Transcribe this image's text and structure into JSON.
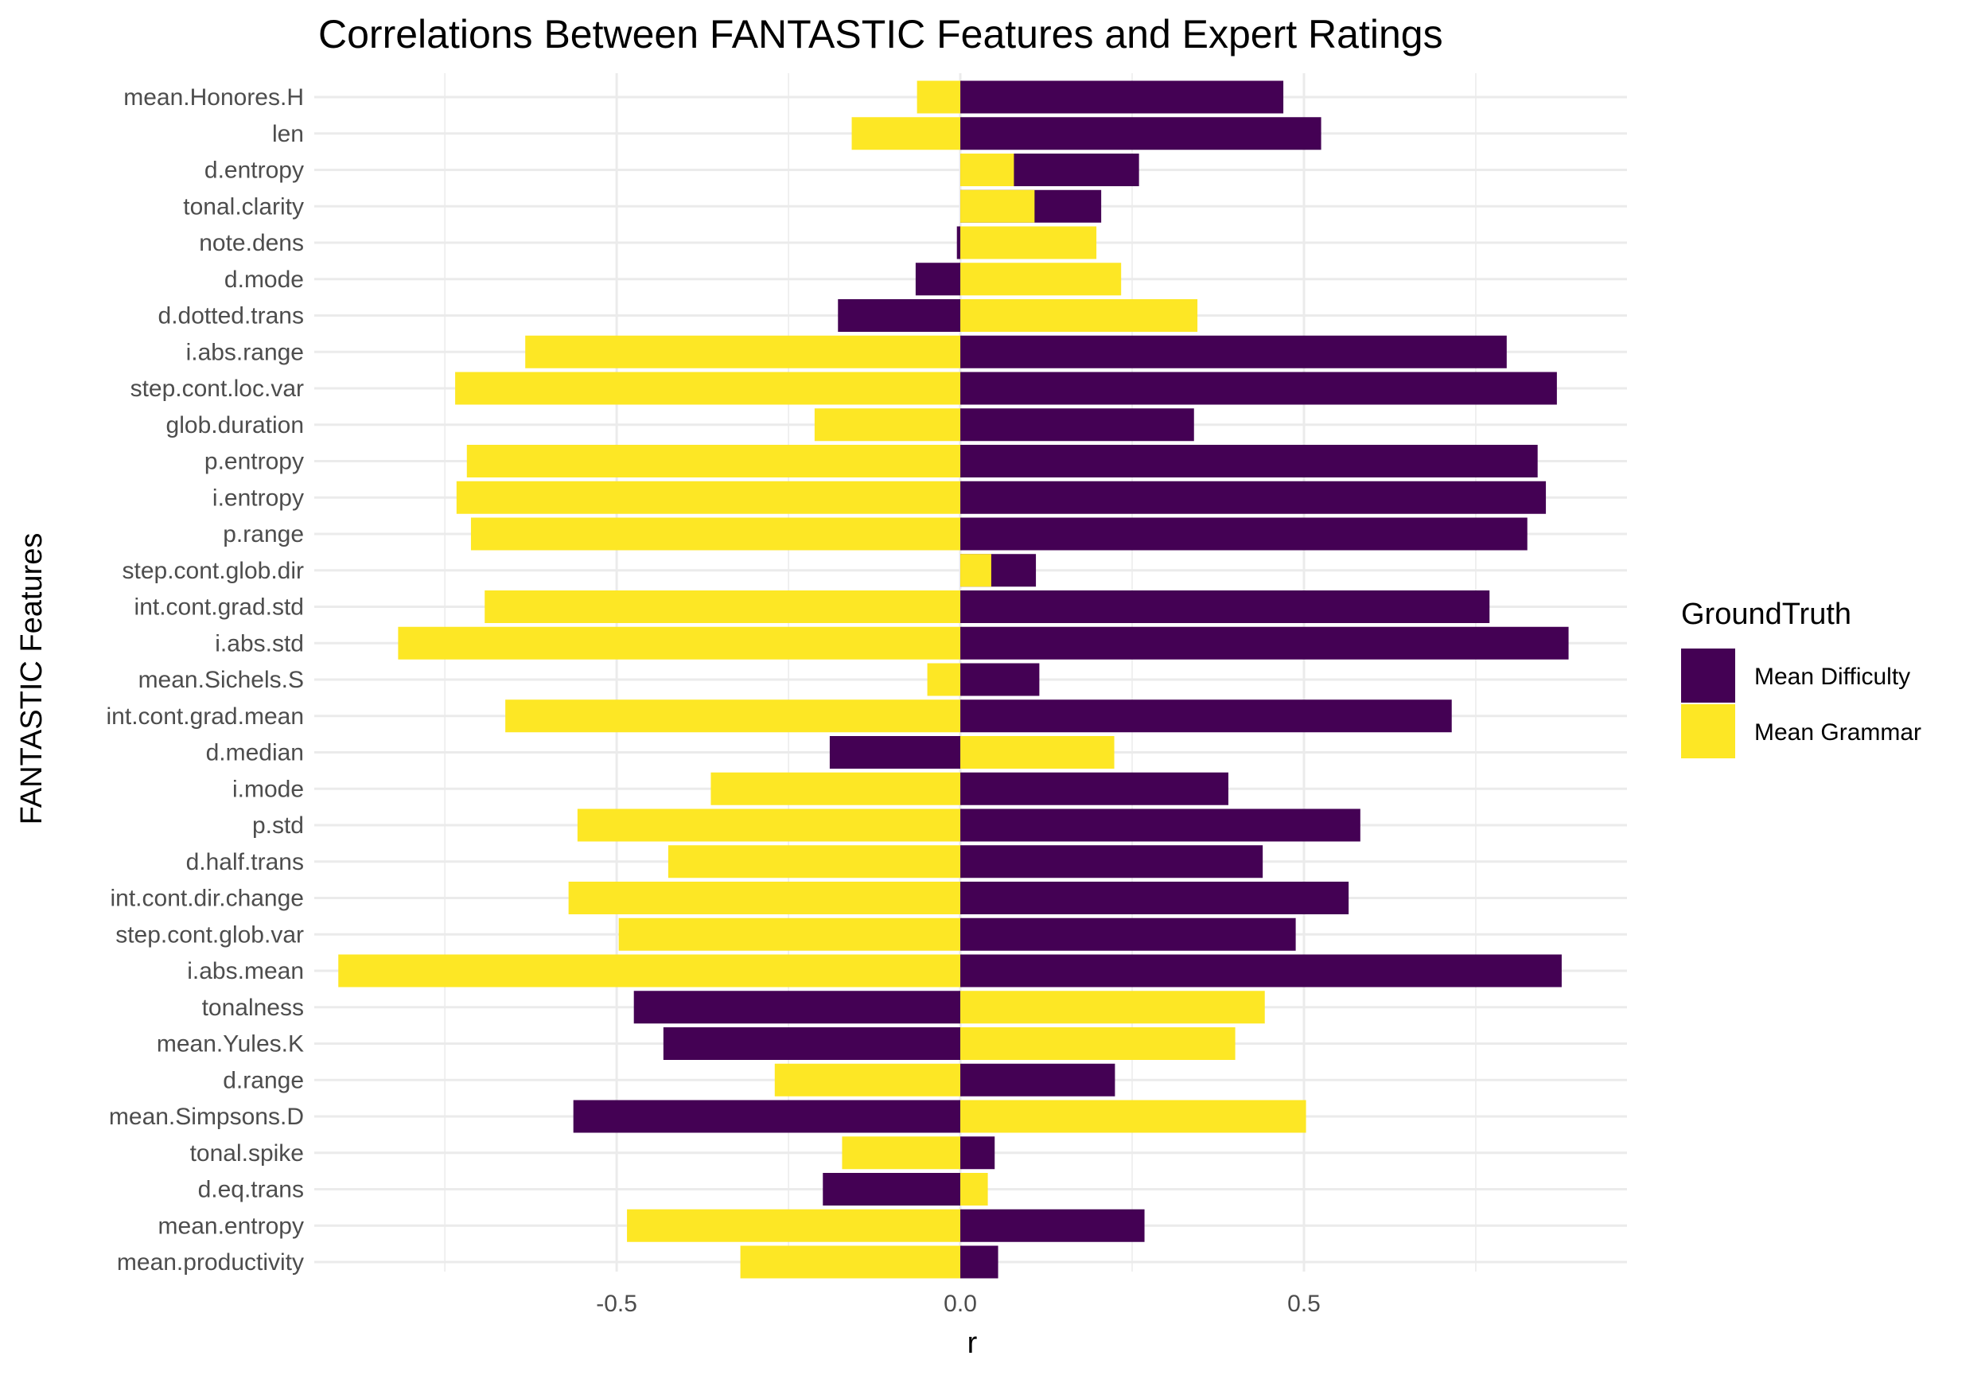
{
  "chart_data": {
    "type": "bar",
    "orientation": "horizontal",
    "title": "Correlations Between FANTASTIC Features and Expert Ratings",
    "xlabel": "r",
    "ylabel": "FANTASTIC Features",
    "xlim": [
      -0.94,
      0.97
    ],
    "x_ticks": [
      -0.5,
      0.0,
      0.5
    ],
    "x_tick_labels": [
      "-0.5",
      "0.0",
      "0.5"
    ],
    "grid": true,
    "legend": {
      "title": "GroundTruth",
      "placement": "right",
      "entries": [
        {
          "label": "Mean Difficulty",
          "color": "#440154"
        },
        {
          "label": "Mean Grammar",
          "color": "#FDE725"
        }
      ]
    },
    "categories": [
      "mean.Honores.H",
      "len",
      "d.entropy",
      "tonal.clarity",
      "note.dens",
      "d.mode",
      "d.dotted.trans",
      "i.abs.range",
      "step.cont.loc.var",
      "glob.duration",
      "p.entropy",
      "i.entropy",
      "p.range",
      "step.cont.glob.dir",
      "int.cont.grad.std",
      "i.abs.std",
      "mean.Sichels.S",
      "int.cont.grad.mean",
      "d.median",
      "i.mode",
      "p.std",
      "d.half.trans",
      "int.cont.dir.change",
      "step.cont.glob.var",
      "i.abs.mean",
      "tonalness",
      "mean.Yules.K",
      "d.range",
      "mean.Simpsons.D",
      "tonal.spike",
      "d.eq.trans",
      "mean.entropy",
      "mean.productivity"
    ],
    "series": [
      {
        "name": "Mean Difficulty",
        "color": "#440154",
        "values": [
          0.47,
          0.525,
          0.26,
          0.205,
          -0.005,
          -0.065,
          -0.178,
          0.795,
          0.868,
          0.34,
          0.84,
          0.852,
          0.825,
          0.11,
          0.77,
          0.885,
          0.115,
          0.715,
          -0.19,
          0.39,
          0.582,
          0.44,
          0.565,
          0.488,
          0.875,
          -0.475,
          -0.432,
          0.225,
          -0.563,
          0.05,
          -0.2,
          0.268,
          0.055
        ]
      },
      {
        "name": "Mean Grammar",
        "color": "#FDE725",
        "values": [
          -0.063,
          -0.158,
          0.078,
          0.108,
          0.198,
          0.234,
          0.345,
          -0.633,
          -0.735,
          -0.212,
          -0.718,
          -0.733,
          -0.712,
          0.045,
          -0.692,
          -0.818,
          -0.048,
          -0.662,
          0.224,
          -0.363,
          -0.557,
          -0.425,
          -0.57,
          -0.497,
          -0.905,
          0.443,
          0.4,
          -0.27,
          0.503,
          -0.172,
          0.04,
          -0.485,
          -0.32
        ]
      }
    ]
  }
}
